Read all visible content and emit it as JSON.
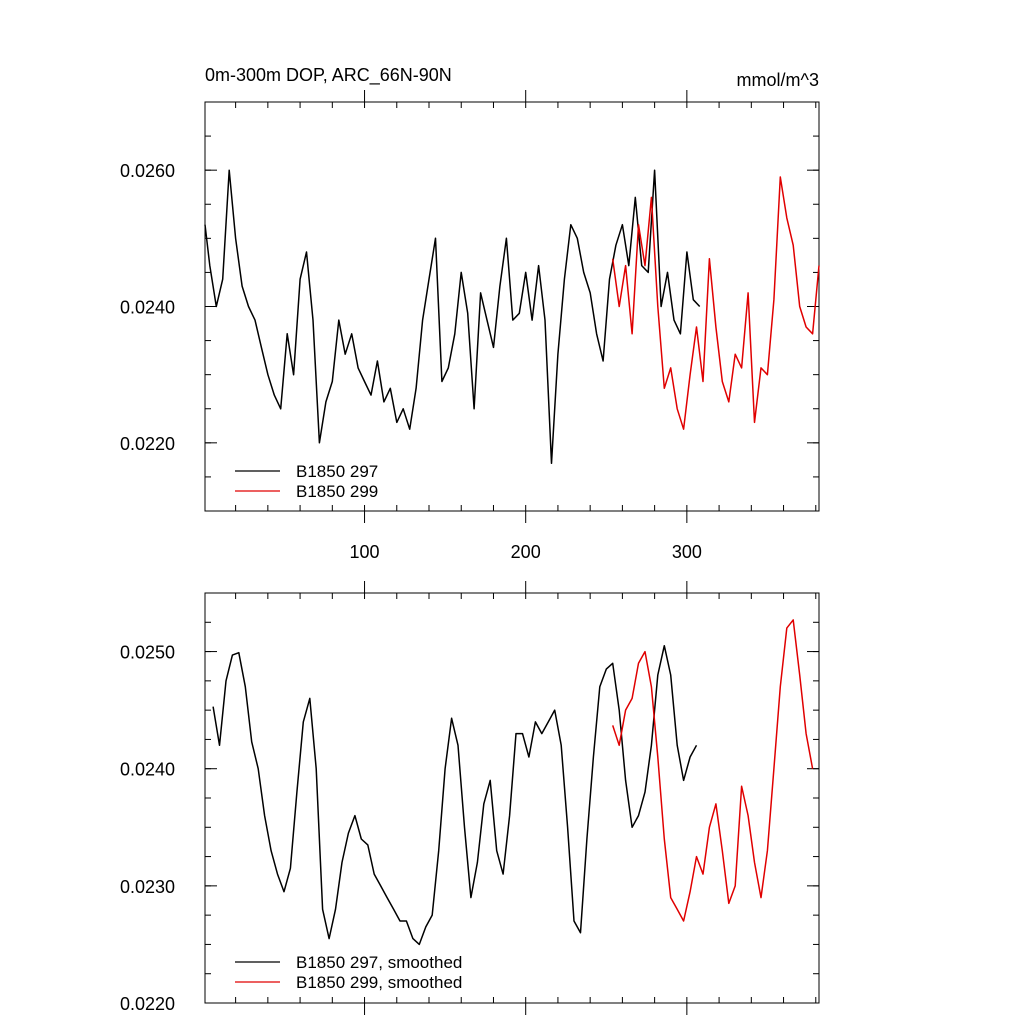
{
  "chart_data": [
    {
      "type": "line",
      "title": "0m-300m DOP, ARC_66N-90N",
      "units": "mmol/m^3",
      "xlabel": "",
      "ylabel": "",
      "xlim": [
        1,
        382
      ],
      "ylim": [
        0.021,
        0.027
      ],
      "xticks": [
        100,
        200,
        300
      ],
      "xtick_labels": [
        "100",
        "200",
        "300"
      ],
      "yticks": [
        0.022,
        0.024,
        0.026
      ],
      "ytick_labels": [
        "0.0220",
        "0.0240",
        "0.0260"
      ],
      "legend_position": "bottom-left",
      "series": [
        {
          "name": "B1850 297",
          "color": "#000000",
          "x": [
            1,
            4,
            8,
            12,
            16,
            20,
            24,
            28,
            32,
            36,
            40,
            44,
            48,
            52,
            56,
            60,
            64,
            68,
            72,
            76,
            80,
            84,
            88,
            92,
            96,
            100,
            104,
            108,
            112,
            116,
            120,
            124,
            128,
            132,
            136,
            140,
            144,
            148,
            152,
            156,
            160,
            164,
            168,
            172,
            176,
            180,
            184,
            188,
            192,
            196,
            200,
            204,
            208,
            212,
            216,
            220,
            224,
            228,
            232,
            236,
            240,
            244,
            248,
            252,
            256,
            260,
            264,
            268,
            272,
            276,
            280,
            284,
            288,
            292,
            296,
            300,
            304,
            308
          ],
          "values": [
            0.0252,
            0.0246,
            0.024,
            0.0244,
            0.026,
            0.025,
            0.0243,
            0.024,
            0.0238,
            0.0234,
            0.023,
            0.0227,
            0.0225,
            0.0236,
            0.023,
            0.0244,
            0.0248,
            0.0238,
            0.022,
            0.0226,
            0.0229,
            0.0238,
            0.0233,
            0.0236,
            0.0231,
            0.0229,
            0.0227,
            0.0232,
            0.0226,
            0.0228,
            0.0223,
            0.0225,
            0.0222,
            0.0228,
            0.0238,
            0.0244,
            0.025,
            0.0229,
            0.0231,
            0.0236,
            0.0245,
            0.0239,
            0.0225,
            0.0242,
            0.0238,
            0.0234,
            0.0243,
            0.025,
            0.0238,
            0.0239,
            0.0245,
            0.0238,
            0.0246,
            0.0238,
            0.0217,
            0.0233,
            0.0244,
            0.0252,
            0.025,
            0.0245,
            0.0242,
            0.0236,
            0.0232,
            0.0244,
            0.0249,
            0.0252,
            0.0246,
            0.0256,
            0.0246,
            0.0245,
            0.026,
            0.024,
            0.0245,
            0.0238,
            0.0236,
            0.0248,
            0.0241,
            0.024
          ]
        },
        {
          "name": "B1850 299",
          "color": "#e00000",
          "x": [
            254,
            258,
            262,
            266,
            270,
            274,
            278,
            282,
            286,
            290,
            294,
            298,
            302,
            306,
            310,
            314,
            318,
            322,
            326,
            330,
            334,
            338,
            342,
            346,
            350,
            354,
            358,
            362,
            366,
            370,
            374,
            378,
            382
          ],
          "values": [
            0.0247,
            0.024,
            0.0246,
            0.0236,
            0.0252,
            0.0246,
            0.0256,
            0.024,
            0.0228,
            0.0231,
            0.0225,
            0.0222,
            0.023,
            0.0237,
            0.0229,
            0.0247,
            0.0237,
            0.0229,
            0.0226,
            0.0233,
            0.0231,
            0.0242,
            0.0223,
            0.0231,
            0.023,
            0.0241,
            0.0259,
            0.0253,
            0.0249,
            0.024,
            0.0237,
            0.0236,
            0.0246
          ]
        }
      ]
    },
    {
      "type": "line",
      "title": "",
      "xlabel": "",
      "ylabel": "",
      "xlim": [
        1,
        382
      ],
      "ylim": [
        0.022,
        0.0255
      ],
      "xticks": [
        100,
        200,
        300
      ],
      "yticks": [
        0.022,
        0.023,
        0.024,
        0.025
      ],
      "ytick_labels": [
        "0.0220",
        "0.0230",
        "0.0240",
        "0.0250"
      ],
      "legend_position": "bottom-left",
      "series": [
        {
          "name": "B1850 297, smoothed",
          "color": "#000000",
          "x": [
            6,
            10,
            14,
            18,
            22,
            26,
            30,
            34,
            38,
            42,
            46,
            50,
            54,
            58,
            62,
            66,
            70,
            74,
            78,
            82,
            86,
            90,
            94,
            98,
            102,
            106,
            110,
            114,
            118,
            122,
            126,
            130,
            134,
            138,
            142,
            146,
            150,
            154,
            158,
            162,
            166,
            170,
            174,
            178,
            182,
            186,
            190,
            194,
            198,
            202,
            206,
            210,
            214,
            218,
            222,
            226,
            230,
            234,
            238,
            242,
            246,
            250,
            254,
            258,
            262,
            266,
            270,
            274,
            278,
            282,
            286,
            290,
            294,
            298,
            302,
            306
          ],
          "values": [
            0.02453,
            0.0242,
            0.02475,
            0.02497,
            0.02499,
            0.0247,
            0.02423,
            0.024,
            0.0236,
            0.0233,
            0.0231,
            0.02295,
            0.02315,
            0.0238,
            0.0244,
            0.0246,
            0.024,
            0.0228,
            0.02255,
            0.0228,
            0.0232,
            0.02345,
            0.0236,
            0.0234,
            0.02335,
            0.0231,
            0.023,
            0.0229,
            0.0228,
            0.0227,
            0.0227,
            0.02255,
            0.0225,
            0.02265,
            0.02275,
            0.0233,
            0.024,
            0.02443,
            0.0242,
            0.0235,
            0.0229,
            0.0232,
            0.0237,
            0.0239,
            0.0233,
            0.0231,
            0.0236,
            0.0243,
            0.0243,
            0.0241,
            0.0244,
            0.0243,
            0.0244,
            0.0245,
            0.0242,
            0.0235,
            0.0227,
            0.0226,
            0.0234,
            0.0241,
            0.0247,
            0.02485,
            0.0249,
            0.0245,
            0.0239,
            0.0235,
            0.0236,
            0.0238,
            0.0242,
            0.0248,
            0.02505,
            0.0248,
            0.0242,
            0.0239,
            0.0241,
            0.0242
          ]
        },
        {
          "name": "B1850 299, smoothed",
          "color": "#e00000",
          "x": [
            254,
            258,
            262,
            266,
            270,
            274,
            278,
            282,
            286,
            290,
            294,
            298,
            302,
            306,
            310,
            314,
            318,
            322,
            326,
            330,
            334,
            338,
            342,
            346,
            350,
            354,
            358,
            362,
            366,
            370,
            374,
            378
          ],
          "values": [
            0.02437,
            0.0242,
            0.0245,
            0.0246,
            0.0249,
            0.025,
            0.0247,
            0.0241,
            0.0234,
            0.0229,
            0.0228,
            0.0227,
            0.02295,
            0.02325,
            0.0231,
            0.0235,
            0.0237,
            0.0233,
            0.02285,
            0.023,
            0.02385,
            0.0236,
            0.0232,
            0.0229,
            0.0233,
            0.024,
            0.0247,
            0.0252,
            0.02527,
            0.0248,
            0.0243,
            0.024
          ]
        }
      ]
    }
  ]
}
